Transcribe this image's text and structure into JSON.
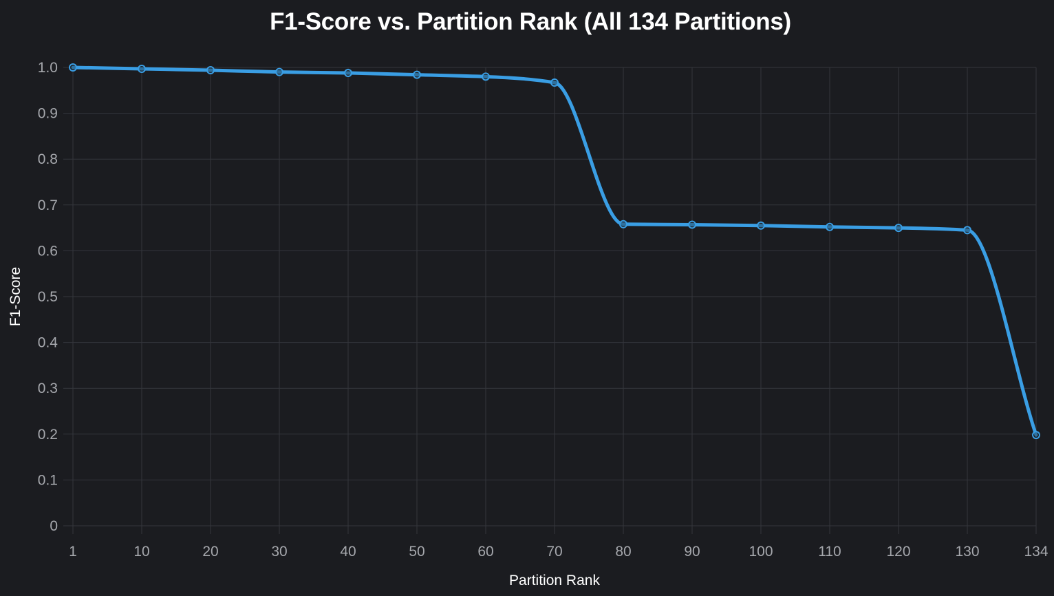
{
  "chart_data": {
    "type": "line",
    "title": "F1-Score vs. Partition Rank (All 134 Partitions)",
    "xlabel": "Partition Rank",
    "ylabel": "F1-Score",
    "x_ticks": [
      "1",
      "10",
      "20",
      "30",
      "40",
      "50",
      "60",
      "70",
      "80",
      "90",
      "100",
      "110",
      "120",
      "130",
      "134"
    ],
    "y_ticks": [
      "0",
      "0.1",
      "0.2",
      "0.3",
      "0.4",
      "0.5",
      "0.6",
      "0.7",
      "0.8",
      "0.9",
      "1.0"
    ],
    "ylim": [
      0,
      1.0
    ],
    "grid": true,
    "series": [
      {
        "color": "#3a9ee4",
        "x": [
          "1",
          "10",
          "20",
          "30",
          "40",
          "50",
          "60",
          "70",
          "80",
          "90",
          "100",
          "110",
          "120",
          "130",
          "134"
        ],
        "values": [
          1.0,
          0.997,
          0.994,
          0.99,
          0.988,
          0.984,
          0.98,
          0.967,
          0.658,
          0.657,
          0.655,
          0.652,
          0.65,
          0.645,
          0.198
        ]
      }
    ]
  }
}
